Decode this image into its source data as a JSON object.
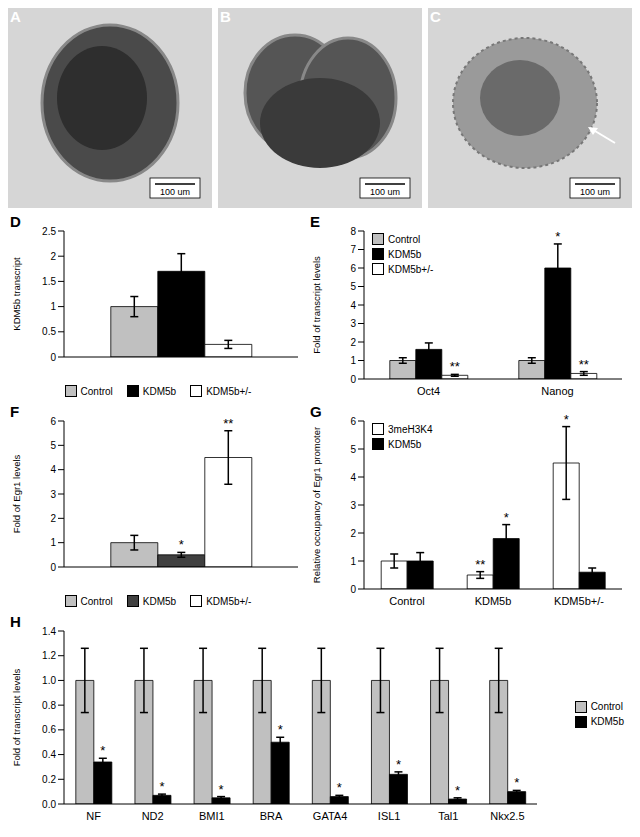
{
  "images": [
    {
      "label": "A",
      "scale_bar": "100 um"
    },
    {
      "label": "B",
      "scale_bar": "100 um"
    },
    {
      "label": "C",
      "scale_bar": "100 um"
    }
  ],
  "chart_data": [
    {
      "label": "D",
      "type": "bar",
      "y_label": "KDM5b transcript",
      "categories": [
        null
      ],
      "series": [
        {
          "name": "Control",
          "color": "#c0c0c0",
          "values": [
            1.0
          ],
          "errors": [
            0.2
          ]
        },
        {
          "name": "KDM5b",
          "color": "#000000",
          "values": [
            1.7
          ],
          "errors": [
            0.35
          ]
        },
        {
          "name": "KDM5b+/-",
          "color": "#ffffff",
          "values": [
            0.25
          ],
          "errors": [
            0.08
          ]
        }
      ],
      "ylim": [
        0,
        2.5
      ],
      "yticks": [
        0,
        0.5,
        1,
        1.5,
        2,
        2.5
      ],
      "legend": "bottom"
    },
    {
      "label": "E",
      "type": "bar",
      "y_label": "Fold of transcript levels",
      "categories": [
        "Oct4",
        "Nanog"
      ],
      "series": [
        {
          "name": "Control",
          "color": "#c0c0c0",
          "values": [
            1.0,
            1.0
          ],
          "errors": [
            0.15,
            0.15
          ]
        },
        {
          "name": "KDM5b",
          "color": "#000000",
          "values": [
            1.6,
            6.0
          ],
          "errors": [
            0.35,
            1.3
          ],
          "significance": [
            null,
            "*"
          ]
        },
        {
          "name": "KDM5b+/-",
          "color": "#ffffff",
          "values": [
            0.2,
            0.3
          ],
          "errors": [
            0.05,
            0.1
          ],
          "significance": [
            "**",
            "**"
          ]
        }
      ],
      "ylim": [
        0,
        8
      ],
      "yticks": [
        0,
        1,
        2,
        3,
        4,
        5,
        6,
        7,
        8
      ],
      "legend": "top-left"
    },
    {
      "label": "F",
      "type": "bar",
      "y_label": "Fold of Egr1 levels",
      "categories": [
        null
      ],
      "series": [
        {
          "name": "Control",
          "color": "#c0c0c0",
          "values": [
            1.0
          ],
          "errors": [
            0.3
          ]
        },
        {
          "name": "KDM5b",
          "color": "#404040",
          "values": [
            0.5
          ],
          "errors": [
            0.1
          ],
          "significance": [
            "*"
          ]
        },
        {
          "name": "KDM5b+/-",
          "color": "#ffffff",
          "values": [
            4.5
          ],
          "errors": [
            1.1
          ],
          "significance": [
            "**"
          ]
        }
      ],
      "ylim": [
        0,
        6
      ],
      "yticks": [
        0,
        1,
        2,
        3,
        4,
        5,
        6
      ],
      "legend": "bottom"
    },
    {
      "label": "G",
      "type": "bar",
      "y_label": "Relative occupancy of Egr1 promoter",
      "categories": [
        "Control",
        "KDM5b",
        "KDM5b+/-"
      ],
      "series": [
        {
          "name": "3meH3K4",
          "color": "#ffffff",
          "values": [
            1.0,
            0.5,
            4.5
          ],
          "errors": [
            0.25,
            0.12,
            1.3
          ],
          "significance": [
            null,
            "**",
            "*"
          ]
        },
        {
          "name": "KDM5b",
          "color": "#000000",
          "values": [
            1.0,
            1.8,
            0.6
          ],
          "errors": [
            0.3,
            0.5,
            0.15
          ],
          "significance": [
            null,
            "*",
            null
          ]
        }
      ],
      "ylim": [
        0,
        6
      ],
      "yticks": [
        0,
        1,
        2,
        3,
        4,
        5,
        6
      ],
      "legend": "top-left"
    },
    {
      "label": "H",
      "type": "bar",
      "y_label": "Fold of transcript levels",
      "categories": [
        "NF",
        "ND2",
        "BMI1",
        "BRA",
        "GATA4",
        "ISL1",
        "Tal1",
        "Nkx2.5"
      ],
      "series": [
        {
          "name": "Control",
          "color": "#c0c0c0",
          "values": [
            1.0,
            1.0,
            1.0,
            1.0,
            1.0,
            1.0,
            1.0,
            1.0
          ],
          "errors": [
            0.26,
            0.26,
            0.26,
            0.26,
            0.26,
            0.26,
            0.26,
            0.26
          ]
        },
        {
          "name": "KDM5b",
          "color": "#000000",
          "values": [
            0.34,
            0.07,
            0.05,
            0.5,
            0.06,
            0.24,
            0.04,
            0.1
          ],
          "errors": [
            0.03,
            0.01,
            0.01,
            0.04,
            0.01,
            0.02,
            0.01,
            0.01
          ],
          "significance": [
            "*",
            "*",
            "*",
            "*",
            "*",
            "*",
            "*",
            "*"
          ]
        }
      ],
      "ylim": [
        0,
        1.4
      ],
      "yticks": [
        {
          "value": 0,
          "label": "0.0"
        },
        {
          "value": 0.2,
          "label": "0.2"
        },
        {
          "value": 0.4,
          "label": "0.4"
        },
        {
          "value": 0.6,
          "label": "0.6"
        },
        {
          "value": 0.8,
          "label": "0.8"
        },
        {
          "value": 1.0,
          "label": "1.0"
        },
        {
          "value": 1.2,
          "label": "1.2"
        },
        {
          "value": 1.4,
          "label": "1.4"
        }
      ],
      "legend": "right"
    }
  ]
}
